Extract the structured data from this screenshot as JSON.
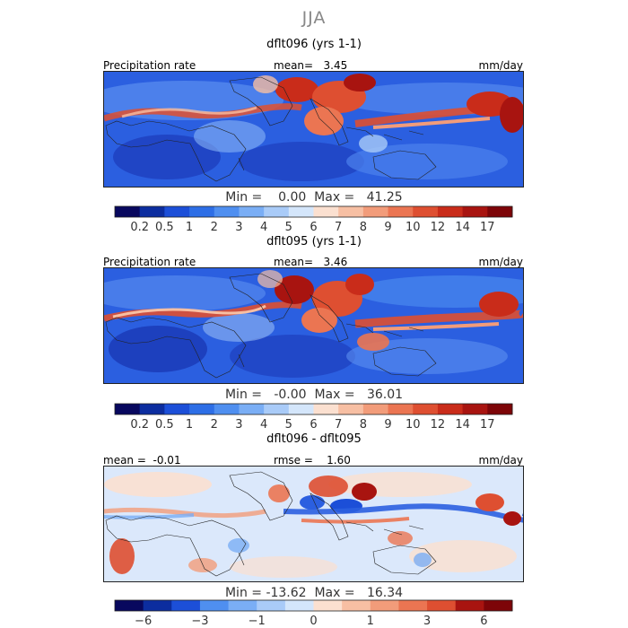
{
  "season": "JJA",
  "panels": [
    {
      "title": "dflt096 (yrs 1-1)",
      "left_label": "Precipitation rate",
      "mean_label": "mean=   3.45",
      "units": "mm/day",
      "minmax": "Min =    0.00  Max =   41.25",
      "colorbar": {
        "colors": [
          "#08085e",
          "#0c2d9f",
          "#1c4fd8",
          "#2d6ee6",
          "#4f8ff0",
          "#7aaef5",
          "#a9cbf8",
          "#d4e6fb",
          "#fbe0d0",
          "#f7bfa3",
          "#f29c7a",
          "#eb7552",
          "#de4f31",
          "#c92c1a",
          "#a81410",
          "#7d0508"
        ],
        "ticks": [
          "0.2",
          "0.5",
          "1",
          "2",
          "3",
          "4",
          "5",
          "6",
          "7",
          "8",
          "9",
          "10",
          "12",
          "14",
          "17"
        ]
      }
    },
    {
      "title": "dflt095 (yrs 1-1)",
      "left_label": "Precipitation rate",
      "mean_label": "mean=   3.46",
      "units": "mm/day",
      "minmax": "Min =   -0.00  Max =   36.01",
      "colorbar": {
        "colors": [
          "#08085e",
          "#0c2d9f",
          "#1c4fd8",
          "#2d6ee6",
          "#4f8ff0",
          "#7aaef5",
          "#a9cbf8",
          "#d4e6fb",
          "#fbe0d0",
          "#f7bfa3",
          "#f29c7a",
          "#eb7552",
          "#de4f31",
          "#c92c1a",
          "#a81410",
          "#7d0508"
        ],
        "ticks": [
          "0.2",
          "0.5",
          "1",
          "2",
          "3",
          "4",
          "5",
          "6",
          "7",
          "8",
          "9",
          "10",
          "12",
          "14",
          "17"
        ]
      }
    },
    {
      "title": "dflt096 - dflt095",
      "mean_label": "mean =  -0.01",
      "rmse_label": "rmse =    1.60",
      "units": "mm/day",
      "minmax": "Min = -13.62  Max =   16.34",
      "colorbar": {
        "colors": [
          "#08085e",
          "#0c2d9f",
          "#1c4fd8",
          "#4f8ff0",
          "#7aaef5",
          "#a9cbf8",
          "#d4e6fb",
          "#fbe0d0",
          "#f7bfa3",
          "#f29c7a",
          "#eb7552",
          "#de4f31",
          "#a81410",
          "#7d0508"
        ],
        "ticks": [
          "-6",
          "-3",
          "-1",
          "0",
          "1",
          "3",
          "6"
        ],
        "tick_boundaries": [
          1,
          3,
          5,
          7,
          9,
          11,
          13
        ]
      }
    }
  ],
  "chart_data": [
    {
      "type": "heatmap",
      "title": "dflt096 (yrs 1-1)",
      "variable": "Precipitation rate",
      "units": "mm/day",
      "mean": 3.45,
      "min": 0.0,
      "max": 41.25,
      "levels": [
        0.2,
        0.5,
        1,
        2,
        3,
        4,
        5,
        6,
        7,
        8,
        9,
        10,
        12,
        14,
        17
      ]
    },
    {
      "type": "heatmap",
      "title": "dflt095 (yrs 1-1)",
      "variable": "Precipitation rate",
      "units": "mm/day",
      "mean": 3.46,
      "min": -0.0,
      "max": 36.01,
      "levels": [
        0.2,
        0.5,
        1,
        2,
        3,
        4,
        5,
        6,
        7,
        8,
        9,
        10,
        12,
        14,
        17
      ]
    },
    {
      "type": "heatmap",
      "title": "dflt096 - dflt095",
      "units": "mm/day",
      "mean": -0.01,
      "rmse": 1.6,
      "min": -13.62,
      "max": 16.34,
      "tick_labels": [
        -6,
        -3,
        -1,
        0,
        1,
        3,
        6
      ]
    }
  ]
}
